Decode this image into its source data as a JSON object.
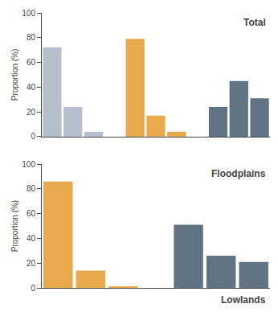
{
  "chart_data": [
    {
      "type": "bar",
      "title": "Total",
      "ylabel": "Proportion (%)",
      "ylim": [
        0,
        100
      ],
      "yticks": [
        0,
        20,
        40,
        60,
        80,
        100
      ],
      "tick_labels": "y",
      "grid": false,
      "series": [
        {
          "color": "#b8bfcc",
          "values": [
            72,
            24,
            4
          ]
        },
        {
          "color": "#e8a84c",
          "values": [
            79,
            17,
            4
          ]
        },
        {
          "color": "#617484",
          "values": [
            24,
            45,
            31
          ]
        }
      ]
    },
    {
      "type": "bar",
      "title": "Floodplains",
      "ylabel": "Proportion (%)",
      "ylim": [
        0,
        100
      ],
      "yticks": [
        0,
        20,
        40,
        60,
        80,
        100
      ],
      "tick_labels": "y",
      "grid": false,
      "series": [
        {
          "color": "#e8a84c",
          "values": [
            86,
            14,
            1
          ]
        },
        {
          "color": "#617484",
          "values": [
            51,
            26,
            21
          ]
        }
      ],
      "annotations": [
        "Lowlands"
      ]
    }
  ]
}
